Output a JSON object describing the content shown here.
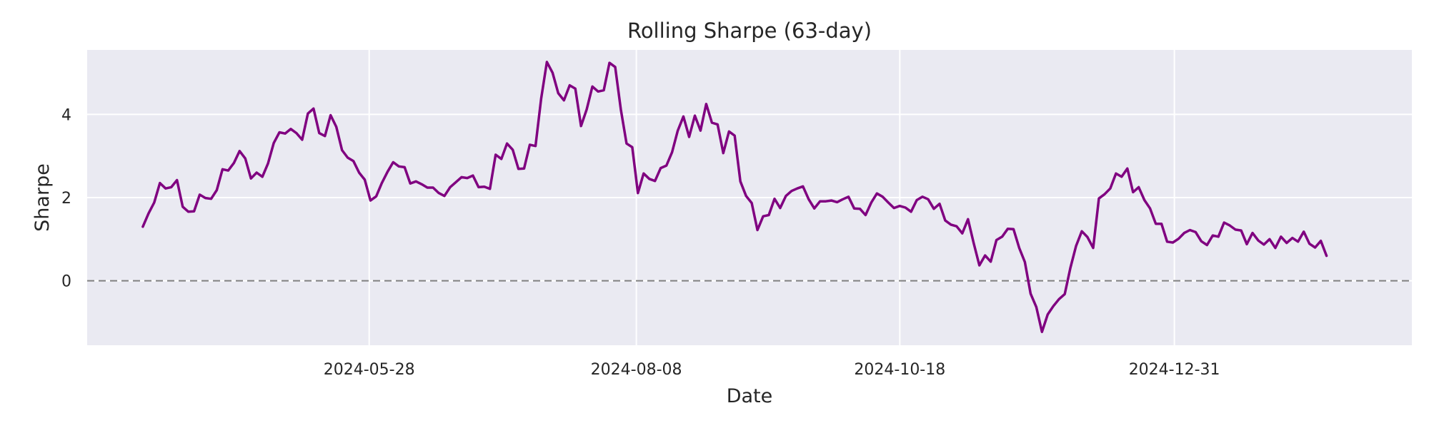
{
  "chart_data": {
    "type": "line",
    "title": "Rolling Sharpe (63-day)",
    "xlabel": "Date",
    "ylabel": "Sharpe",
    "xlim": [
      "2024-03-13",
      "2025-03-05"
    ],
    "ylim": [
      -1.55,
      5.55
    ],
    "x_ticks": [
      "2024-05-28",
      "2024-08-08",
      "2024-10-18",
      "2024-12-31"
    ],
    "y_ticks": [
      0,
      2,
      4
    ],
    "grid": true,
    "reference_line": {
      "y": 0,
      "style": "dashed",
      "color": "#808080"
    },
    "colors": {
      "line": "#800080",
      "background": "#eaeaf2",
      "grid": "#ffffff"
    },
    "series": [
      {
        "color": "#800080",
        "x_start": "2024-03-28",
        "x_end": "2025-02-10",
        "values": [
          1.3,
          1.62,
          1.88,
          2.35,
          2.22,
          2.25,
          2.42,
          1.78,
          1.66,
          1.67,
          2.07,
          1.99,
          1.97,
          2.18,
          2.68,
          2.65,
          2.83,
          3.12,
          2.94,
          2.46,
          2.6,
          2.5,
          2.82,
          3.31,
          3.57,
          3.54,
          3.65,
          3.55,
          3.39,
          4.02,
          4.14,
          3.55,
          3.48,
          3.98,
          3.7,
          3.14,
          2.96,
          2.88,
          2.6,
          2.43,
          1.93,
          2.03,
          2.35,
          2.62,
          2.85,
          2.75,
          2.73,
          2.34,
          2.39,
          2.32,
          2.24,
          2.24,
          2.11,
          2.04,
          2.25,
          2.37,
          2.49,
          2.47,
          2.53,
          2.25,
          2.26,
          2.21,
          3.03,
          2.93,
          3.3,
          3.15,
          2.69,
          2.7,
          3.27,
          3.24,
          4.38,
          5.26,
          5.0,
          4.51,
          4.34,
          4.7,
          4.62,
          3.72,
          4.12,
          4.67,
          4.55,
          4.58,
          5.24,
          5.14,
          4.12,
          3.3,
          3.21,
          2.11,
          2.58,
          2.45,
          2.4,
          2.71,
          2.77,
          3.09,
          3.61,
          3.95,
          3.46,
          3.97,
          3.61,
          4.25,
          3.8,
          3.76,
          3.07,
          3.59,
          3.49,
          2.39,
          2.04,
          1.87,
          1.22,
          1.55,
          1.58,
          1.97,
          1.75,
          2.04,
          2.16,
          2.22,
          2.27,
          1.96,
          1.74,
          1.91,
          1.91,
          1.93,
          1.89,
          1.96,
          2.02,
          1.74,
          1.73,
          1.58,
          1.88,
          2.1,
          2.02,
          1.88,
          1.75,
          1.8,
          1.76,
          1.66,
          1.94,
          2.02,
          1.96,
          1.73,
          1.85,
          1.45,
          1.35,
          1.31,
          1.14,
          1.48,
          0.91,
          0.37,
          0.61,
          0.46,
          0.98,
          1.06,
          1.25,
          1.24,
          0.79,
          0.45,
          -0.31,
          -0.63,
          -1.23,
          -0.81,
          -0.61,
          -0.44,
          -0.32,
          0.31,
          0.84,
          1.19,
          1.05,
          0.79,
          1.98,
          2.08,
          2.22,
          2.58,
          2.5,
          2.7,
          2.13,
          2.25,
          1.94,
          1.74,
          1.37,
          1.37,
          0.94,
          0.92,
          1.01,
          1.15,
          1.22,
          1.17,
          0.95,
          0.86,
          1.09,
          1.06,
          1.4,
          1.33,
          1.23,
          1.21,
          0.88,
          1.15,
          0.97,
          0.87,
          1.0,
          0.79,
          1.06,
          0.91,
          1.03,
          0.94,
          1.18,
          0.89,
          0.8,
          0.96,
          0.6
        ]
      }
    ]
  }
}
